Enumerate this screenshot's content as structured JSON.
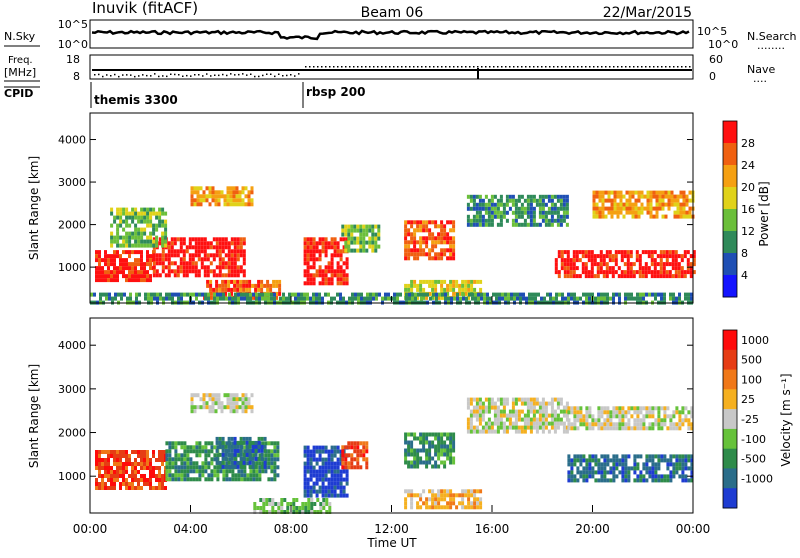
{
  "header": {
    "station": "Inuvik (fitACF)",
    "beam": "Beam 06",
    "date": "22/Mar/2015"
  },
  "nsky_panel": {
    "left_label": "N.Sky",
    "right_label": "N.Search",
    "right_marker": "........",
    "ytick_top": "10^5",
    "ytick_bottom": "10^0"
  },
  "freq_panel": {
    "left_label_1": "Freq.",
    "left_label_2": "[MHz]",
    "ytick_top": "18",
    "ytick_bottom": "8",
    "right_label": "Nave",
    "right_marker": "....",
    "right_tick_top": "60",
    "right_tick_bottom": "0"
  },
  "cpid": {
    "label": "CPID",
    "entries": [
      {
        "name": "themis 3300",
        "start_hour": 0
      },
      {
        "name": "rbsp 200",
        "start_hour": 8.4
      }
    ]
  },
  "xaxis": {
    "label": "Time UT",
    "ticks": [
      "00:00",
      "04:00",
      "08:00",
      "12:00",
      "16:00",
      "20:00",
      "00:00"
    ]
  },
  "chart_data": [
    {
      "type": "heatmap",
      "name": "power",
      "ylabel": "Slant Range [km]",
      "yticks": [
        "1000",
        "2000",
        "3000",
        "4000"
      ],
      "ylim": [
        180,
        4600
      ],
      "xlim": [
        0,
        24
      ],
      "colorbar_label": "Power [dB]",
      "colorbar_ticks": [
        "4",
        "8",
        "12",
        "16",
        "20",
        "24",
        "28"
      ],
      "colors": [
        "#1414ff",
        "#1f4fb4",
        "#2f8a5a",
        "#6bbf3a",
        "#e0d21a",
        "#f5a012",
        "#f06010",
        "#ff1010"
      ],
      "regions": [
        {
          "t0": 0.2,
          "t1": 2.5,
          "r0": 700,
          "r1": 1400,
          "level": 7
        },
        {
          "t0": 2.5,
          "t1": 6.2,
          "r0": 800,
          "r1": 1700,
          "level": 7
        },
        {
          "t0": 0.8,
          "t1": 3.0,
          "r0": 1500,
          "r1": 2400,
          "level": 3
        },
        {
          "t0": 4.0,
          "t1": 6.5,
          "r0": 2500,
          "r1": 2900,
          "level": 5
        },
        {
          "t0": 4.5,
          "t1": 7.5,
          "r0": 250,
          "r1": 700,
          "level": 6
        },
        {
          "t0": 8.5,
          "t1": 10.2,
          "r0": 600,
          "r1": 1700,
          "level": 7
        },
        {
          "t0": 10.0,
          "t1": 11.5,
          "r0": 1400,
          "r1": 2000,
          "level": 3
        },
        {
          "t0": 12.5,
          "t1": 14.5,
          "r0": 1200,
          "r1": 2100,
          "level": 6
        },
        {
          "t0": 12.5,
          "t1": 15.5,
          "r0": 250,
          "r1": 700,
          "level": 4
        },
        {
          "t0": 15.0,
          "t1": 19.0,
          "r0": 2000,
          "r1": 2700,
          "level": 2
        },
        {
          "t0": 18.5,
          "t1": 24.0,
          "r0": 800,
          "r1": 1400,
          "level": 7
        },
        {
          "t0": 20.0,
          "t1": 24.0,
          "r0": 2200,
          "r1": 2800,
          "level": 5
        },
        {
          "t0": 0.0,
          "t1": 24.0,
          "r0": 180,
          "r1": 400,
          "level": 2
        }
      ]
    },
    {
      "type": "heatmap",
      "name": "velocity",
      "ylabel": "Slant Range [km]",
      "yticks": [
        "1000",
        "2000",
        "3000",
        "4000"
      ],
      "ylim": [
        180,
        4600
      ],
      "xlim": [
        0,
        24
      ],
      "colorbar_label": "Velocity [m s⁻¹]",
      "colorbar_ticks": [
        "1000",
        "500",
        "100",
        "25",
        "-25",
        "-100",
        "-500",
        "-1000"
      ],
      "colors": [
        "#1e3cd2",
        "#2a6d8a",
        "#2e8b4a",
        "#66c23a",
        "#c8c8c8",
        "#f5b020",
        "#f07818",
        "#e63c14",
        "#ff0a0a"
      ],
      "regions": [
        {
          "t0": 0.2,
          "t1": 3.0,
          "r0": 700,
          "r1": 1600,
          "level": 7
        },
        {
          "t0": 3.0,
          "t1": 7.5,
          "r0": 900,
          "r1": 1800,
          "level": 2
        },
        {
          "t0": 5.0,
          "t1": 7.0,
          "r0": 1200,
          "r1": 1900,
          "level": 1
        },
        {
          "t0": 4.0,
          "t1": 6.5,
          "r0": 2500,
          "r1": 2900,
          "level": 4
        },
        {
          "t0": 8.5,
          "t1": 10.2,
          "r0": 600,
          "r1": 1700,
          "level": 0
        },
        {
          "t0": 10.0,
          "t1": 11.0,
          "r0": 1200,
          "r1": 1800,
          "level": 7
        },
        {
          "t0": 12.5,
          "t1": 14.5,
          "r0": 1200,
          "r1": 2000,
          "level": 2
        },
        {
          "t0": 12.5,
          "t1": 15.5,
          "r0": 250,
          "r1": 700,
          "level": 5
        },
        {
          "t0": 15.0,
          "t1": 19.0,
          "r0": 2000,
          "r1": 2800,
          "level": 4
        },
        {
          "t0": 19.0,
          "t1": 24.0,
          "r0": 900,
          "r1": 1500,
          "level": 1
        },
        {
          "t0": 19.0,
          "t1": 24.0,
          "r0": 2100,
          "r1": 2600,
          "level": 4
        },
        {
          "t0": 6.5,
          "t1": 9.5,
          "r0": 200,
          "r1": 500,
          "level": 3
        }
      ]
    }
  ]
}
